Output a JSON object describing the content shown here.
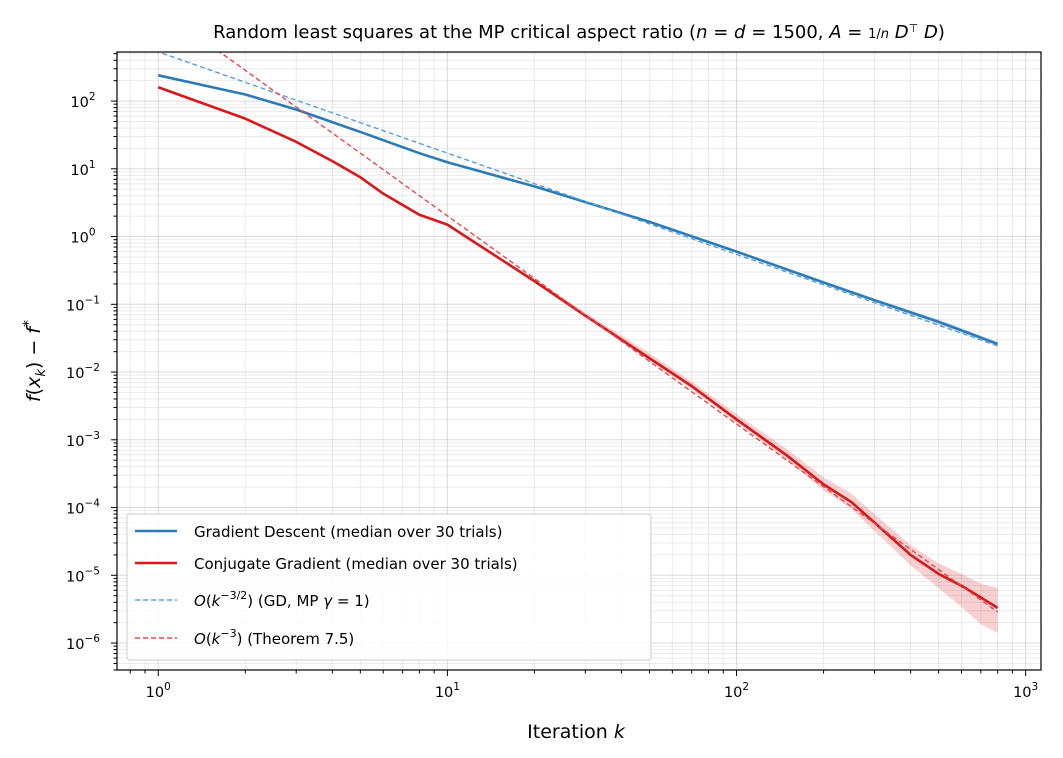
{
  "chart_data": {
    "type": "line",
    "title": "Random least squares at the MP critical aspect ratio (n = d = 1500, A = (1/n) D⊤D)",
    "xlabel": "Iteration k",
    "ylabel": "f(x_k) − f*",
    "xscale": "log",
    "yscale": "log",
    "xlim": [
      0.72,
      1130
    ],
    "ylim": [
      4e-07,
      530
    ],
    "grid": true,
    "legend_position": "lower-left",
    "x_ticks": [
      1,
      10,
      100,
      1000
    ],
    "y_ticks": [
      1e-06,
      1e-05,
      0.0001,
      0.001,
      0.01,
      0.1,
      1,
      10,
      100
    ],
    "series": [
      {
        "name": "Gradient Descent (median over 30 trials)",
        "color": "#2c7bb6",
        "style": "solid",
        "x": [
          1,
          2,
          3,
          5,
          8,
          10,
          20,
          50,
          100,
          200,
          300,
          500,
          800
        ],
        "y": [
          240,
          125,
          75,
          35,
          17,
          12.5,
          5.5,
          1.65,
          0.6,
          0.21,
          0.115,
          0.055,
          0.026
        ],
        "band_low": [
          240,
          125,
          75,
          35,
          17,
          12.5,
          5.5,
          1.62,
          0.58,
          0.2,
          0.108,
          0.05,
          0.024
        ],
        "band_high": [
          240,
          125,
          75,
          35,
          17,
          12.5,
          5.5,
          1.68,
          0.62,
          0.222,
          0.122,
          0.06,
          0.028
        ]
      },
      {
        "name": "Conjugate Gradient (median over 30 trials)",
        "color": "#d7191c",
        "style": "solid",
        "x": [
          1,
          2,
          3,
          4,
          5,
          6,
          8,
          10,
          20,
          30,
          50,
          70,
          100,
          150,
          200,
          250,
          300,
          400,
          500,
          600,
          700,
          800
        ],
        "y": [
          160,
          55,
          25,
          13,
          7.5,
          4.3,
          2.1,
          1.5,
          0.22,
          0.068,
          0.016,
          0.0062,
          0.002,
          0.00058,
          0.00022,
          0.00012,
          6e-05,
          2e-05,
          1.05e-05,
          7e-06,
          4.7e-06,
          3.3e-06
        ],
        "band_low": [
          160,
          55,
          25,
          13,
          7.5,
          4.3,
          2.1,
          1.5,
          0.21,
          0.064,
          0.0148,
          0.0056,
          0.0018,
          0.0005,
          0.00018,
          9.5e-05,
          4.5e-05,
          1.4e-05,
          6.5e-06,
          3.4e-06,
          1.9e-06,
          1.4e-06
        ],
        "band_high": [
          160,
          55,
          25,
          13,
          7.5,
          4.3,
          2.1,
          1.5,
          0.23,
          0.075,
          0.019,
          0.0072,
          0.0024,
          0.00072,
          0.00028,
          0.00016,
          8e-05,
          2.8e-05,
          1.5e-05,
          1.05e-05,
          7.5e-06,
          6.5e-06
        ]
      },
      {
        "name": "O(k^{-3/2}) (GD, MP γ = 1)",
        "color": "#5a9fd4",
        "style": "dashed",
        "x": [
          0.72,
          800
        ],
        "y": [
          870.6,
          0.02436
        ]
      },
      {
        "name": "O(k^{-3}) (Theorem 7.5)",
        "color": "#e34a4c",
        "style": "dashed",
        "x": [
          1.3,
          800
        ],
        "y": [
          1068,
          2.87e-06
        ]
      }
    ]
  }
}
